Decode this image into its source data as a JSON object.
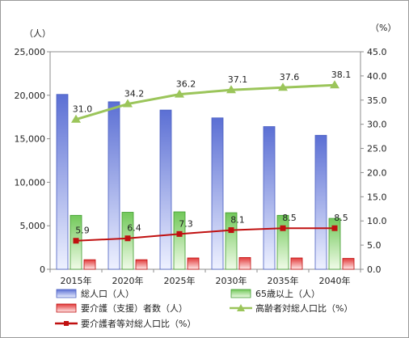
{
  "chart_data": {
    "type": "bar",
    "left_unit": "（人）",
    "right_unit": "（%）",
    "categories": [
      "2015年",
      "2020年",
      "2025年",
      "2030年",
      "2035年",
      "2040年"
    ],
    "left_axis": {
      "ylim": [
        0,
        25000
      ],
      "ticks": [
        "0",
        "5,000",
        "10,000",
        "15,000",
        "20,000",
        "25,000"
      ]
    },
    "right_axis": {
      "ylim": [
        0,
        45
      ],
      "ticks": [
        "0.0",
        "5.0",
        "10.0",
        "15.0",
        "20.0",
        "25.0",
        "30.0",
        "35.0",
        "40.0",
        "45.0"
      ]
    },
    "series": [
      {
        "name": "総人口（人）",
        "type": "bar",
        "axis": "left",
        "values": [
          20100,
          19250,
          18300,
          17400,
          16400,
          15400
        ],
        "color": "#4a5fc1",
        "fill_top": "#5b6fd4",
        "fill_bottom": "#eef1ff"
      },
      {
        "name": "65歳以上（人）",
        "type": "bar",
        "axis": "left",
        "values": [
          6200,
          6550,
          6600,
          6500,
          6200,
          5850
        ],
        "color": "#3f9b2e",
        "fill_top": "#72c85a",
        "fill_bottom": "#f0fbe8"
      },
      {
        "name": "要介護（支援）者数（人）",
        "type": "bar",
        "axis": "left",
        "values": [
          1100,
          1100,
          1300,
          1350,
          1300,
          1250
        ],
        "color": "#c01010",
        "fill_top": "#e23b3b",
        "fill_bottom": "#ffe8e8"
      },
      {
        "name": "高齢者対総人口比（%）",
        "type": "line",
        "axis": "right",
        "values": [
          31.0,
          34.2,
          36.2,
          37.1,
          37.6,
          38.1
        ],
        "labels": [
          "31.0",
          "34.2",
          "36.2",
          "37.1",
          "37.6",
          "38.1"
        ],
        "color": "#9bc55a",
        "marker": "triangle"
      },
      {
        "name": "要介護者等対総人口比（%）",
        "type": "line",
        "axis": "right",
        "values": [
          5.9,
          6.4,
          7.3,
          8.1,
          8.5,
          8.5
        ],
        "labels": [
          "5.9",
          "6.4",
          "7.3",
          "8.1",
          "8.5",
          "8.5"
        ],
        "color": "#c01010",
        "marker": "square"
      }
    ]
  }
}
